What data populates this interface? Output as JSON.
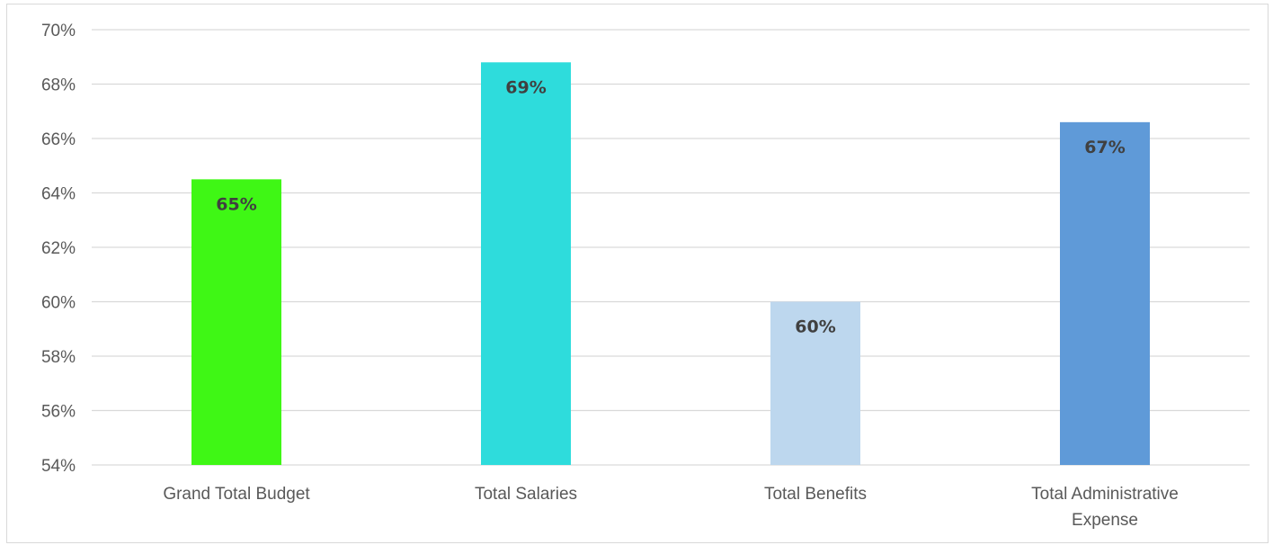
{
  "chart_data": {
    "type": "bar",
    "categories": [
      [
        "Grand Total Budget"
      ],
      [
        "Total Salaries"
      ],
      [
        "Total Benefits"
      ],
      [
        "Total Administrative",
        "Expense"
      ]
    ],
    "values": [
      64.5,
      68.8,
      60.0,
      66.6
    ],
    "data_labels": [
      "65%",
      "69%",
      "60%",
      "67%"
    ],
    "bar_colors": [
      "#3ff715",
      "#2edcdc",
      "#bdd7ee",
      "#5f9ad8"
    ],
    "ylim": [
      54,
      70
    ],
    "yticks": [
      54,
      56,
      58,
      60,
      62,
      64,
      66,
      68,
      70
    ],
    "ytick_labels": [
      "54%",
      "56%",
      "58%",
      "60%",
      "62%",
      "64%",
      "66%",
      "68%",
      "70%"
    ],
    "grid": true,
    "legend": "none",
    "title": "",
    "xlabel": "",
    "ylabel": ""
  }
}
